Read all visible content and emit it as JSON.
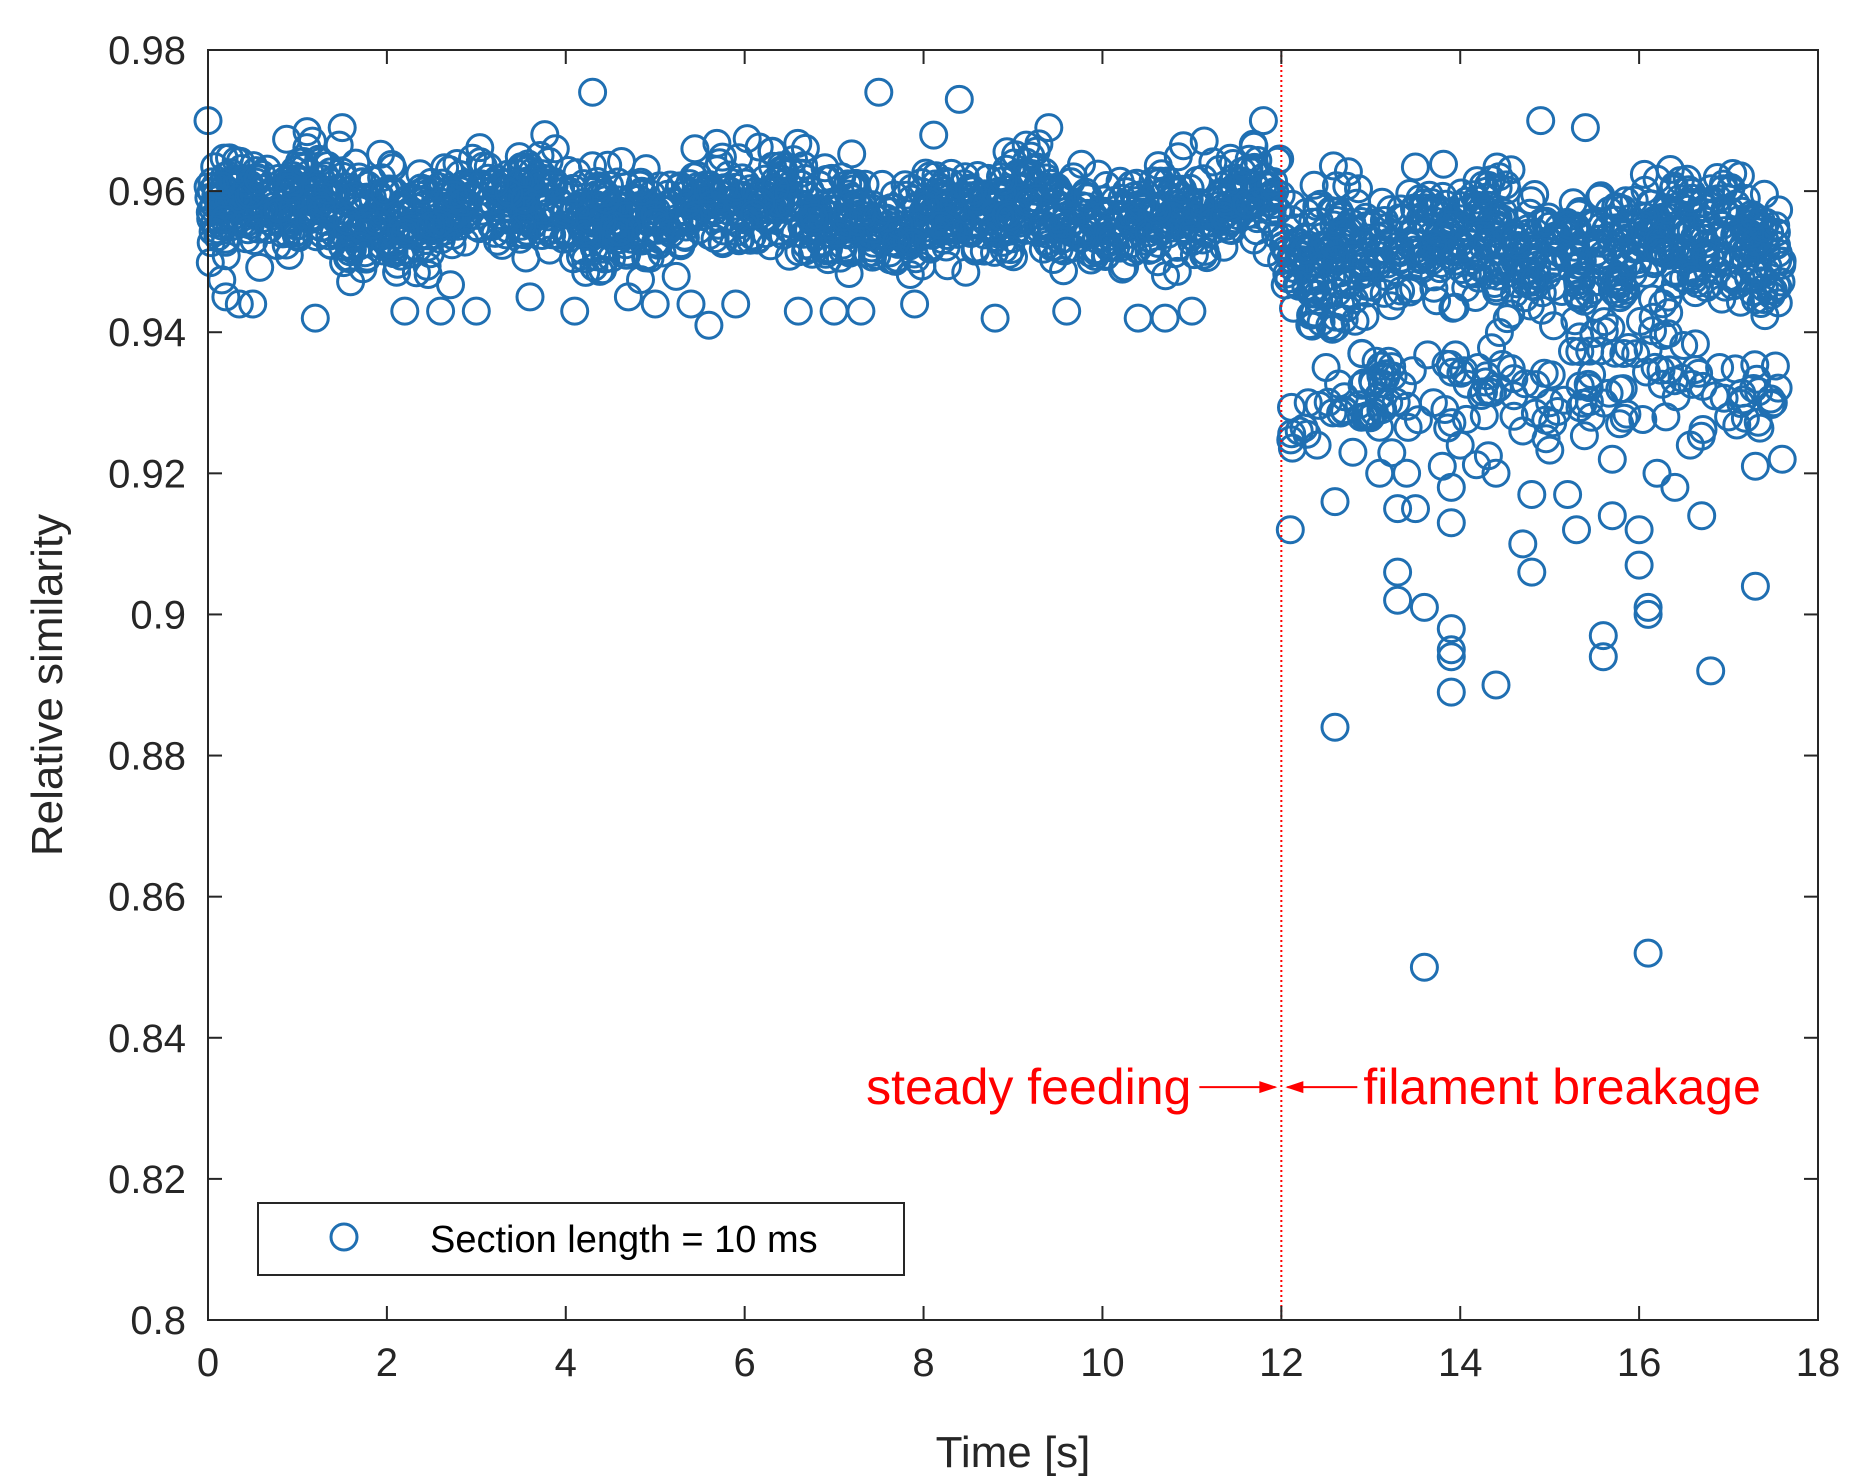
{
  "chart_data": {
    "type": "scatter",
    "title": "",
    "xlabel": "Time [s]",
    "ylabel": "Relative similarity",
    "xlim": [
      0,
      18
    ],
    "ylim": [
      0.8,
      0.98
    ],
    "xticks": [
      0,
      2,
      4,
      6,
      8,
      10,
      12,
      14,
      16,
      18
    ],
    "xtick_labels": [
      "0",
      "2",
      "4",
      "6",
      "8",
      "10",
      "12",
      "14",
      "16",
      "18"
    ],
    "yticks": [
      0.8,
      0.82,
      0.84,
      0.86,
      0.88,
      0.9,
      0.92,
      0.94,
      0.96,
      0.98
    ],
    "ytick_labels": [
      "0.8",
      "0.82",
      "0.84",
      "0.86",
      "0.88",
      "0.9",
      "0.92",
      "0.94",
      "0.96",
      "0.98"
    ],
    "grid": false,
    "marker": "open-circle",
    "series": [
      {
        "name": "Section length = 10 ms",
        "color": "#1f6fb2",
        "x_range": [
          0,
          17.6
        ],
        "points": [
          [
            0.0,
            0.97
          ],
          [
            0.2,
            0.945
          ],
          [
            0.35,
            0.944
          ],
          [
            0.5,
            0.944
          ],
          [
            1.2,
            0.942
          ],
          [
            1.5,
            0.969
          ],
          [
            2.2,
            0.943
          ],
          [
            2.6,
            0.943
          ],
          [
            3.0,
            0.943
          ],
          [
            3.6,
            0.945
          ],
          [
            4.1,
            0.943
          ],
          [
            4.3,
            0.974
          ],
          [
            4.7,
            0.945
          ],
          [
            5.0,
            0.944
          ],
          [
            5.4,
            0.944
          ],
          [
            5.6,
            0.941
          ],
          [
            5.9,
            0.944
          ],
          [
            6.6,
            0.943
          ],
          [
            7.0,
            0.943
          ],
          [
            7.3,
            0.943
          ],
          [
            7.5,
            0.974
          ],
          [
            7.9,
            0.944
          ],
          [
            8.4,
            0.973
          ],
          [
            8.8,
            0.942
          ],
          [
            9.4,
            0.969
          ],
          [
            9.6,
            0.943
          ],
          [
            10.4,
            0.942
          ],
          [
            10.7,
            0.942
          ],
          [
            11.0,
            0.943
          ],
          [
            11.8,
            0.97
          ],
          [
            12.1,
            0.912
          ],
          [
            12.2,
            0.926
          ],
          [
            12.3,
            0.93
          ],
          [
            12.4,
            0.924
          ],
          [
            12.5,
            0.935
          ],
          [
            12.6,
            0.916
          ],
          [
            12.6,
            0.884
          ],
          [
            12.7,
            0.929
          ],
          [
            12.8,
            0.923
          ],
          [
            12.9,
            0.937
          ],
          [
            13.1,
            0.92
          ],
          [
            13.2,
            0.93
          ],
          [
            13.3,
            0.915
          ],
          [
            13.3,
            0.906
          ],
          [
            13.3,
            0.902
          ],
          [
            13.4,
            0.92
          ],
          [
            13.5,
            0.915
          ],
          [
            13.6,
            0.901
          ],
          [
            13.6,
            0.85
          ],
          [
            13.7,
            0.93
          ],
          [
            13.8,
            0.921
          ],
          [
            13.9,
            0.918
          ],
          [
            13.9,
            0.913
          ],
          [
            13.9,
            0.898
          ],
          [
            13.9,
            0.895
          ],
          [
            13.9,
            0.894
          ],
          [
            13.9,
            0.889
          ],
          [
            14.0,
            0.924
          ],
          [
            14.2,
            0.935
          ],
          [
            14.4,
            0.89
          ],
          [
            14.4,
            0.92
          ],
          [
            14.6,
            0.931
          ],
          [
            14.7,
            0.926
          ],
          [
            14.7,
            0.91
          ],
          [
            14.8,
            0.906
          ],
          [
            14.8,
            0.917
          ],
          [
            14.9,
            0.97
          ],
          [
            15.0,
            0.93
          ],
          [
            15.2,
            0.917
          ],
          [
            15.3,
            0.912
          ],
          [
            15.4,
            0.969
          ],
          [
            15.6,
            0.897
          ],
          [
            15.6,
            0.894
          ],
          [
            15.7,
            0.914
          ],
          [
            15.7,
            0.922
          ],
          [
            16.0,
            0.907
          ],
          [
            16.0,
            0.912
          ],
          [
            16.1,
            0.852
          ],
          [
            16.1,
            0.901
          ],
          [
            16.1,
            0.9
          ],
          [
            16.2,
            0.92
          ],
          [
            16.3,
            0.928
          ],
          [
            16.4,
            0.918
          ],
          [
            16.7,
            0.914
          ],
          [
            16.8,
            0.892
          ],
          [
            16.9,
            0.935
          ],
          [
            17.0,
            0.928
          ],
          [
            17.3,
            0.904
          ],
          [
            17.3,
            0.921
          ],
          [
            17.5,
            0.93
          ],
          [
            17.6,
            0.922
          ]
        ],
        "bands": [
          {
            "x": [
              0,
              12
            ],
            "y_center": 0.957,
            "y_spread": 0.008,
            "count": 1400
          },
          {
            "x": [
              12,
              17.6
            ],
            "y_center": 0.952,
            "y_spread": 0.01,
            "count": 650
          },
          {
            "x": [
              12,
              17.6
            ],
            "y_center": 0.932,
            "y_spread": 0.01,
            "count": 160
          }
        ]
      }
    ],
    "vline": {
      "x": 12,
      "color": "#ff0000",
      "style": "dotted"
    },
    "annotations": [
      {
        "text": "steady feeding",
        "color": "#ff0000",
        "y": 0.833,
        "arrow_toward_x": 12,
        "side": "left"
      },
      {
        "text": "filament breakage",
        "color": "#ff0000",
        "y": 0.833,
        "arrow_toward_x": 12,
        "side": "right"
      }
    ],
    "legend": {
      "position": "bottom-left",
      "entries": [
        "Section length = 10 ms"
      ]
    }
  }
}
